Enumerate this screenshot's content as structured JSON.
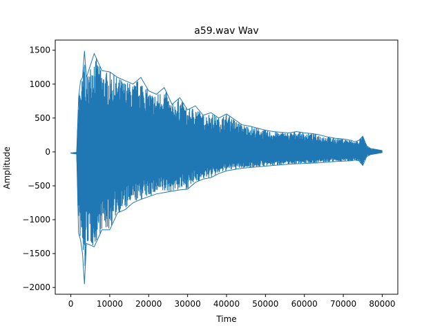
{
  "chart_data": {
    "type": "line",
    "title": "a59.wav Wav",
    "xlabel": "Time",
    "ylabel": "Amplitude",
    "xlim": [
      -4000,
      84000
    ],
    "ylim": [
      -2100,
      1650
    ],
    "xticks": [
      0,
      10000,
      20000,
      30000,
      40000,
      50000,
      60000,
      70000,
      80000
    ],
    "xtick_labels": [
      "0",
      "10000",
      "20000",
      "30000",
      "40000",
      "50000",
      "60000",
      "70000",
      "80000"
    ],
    "yticks": [
      -2000,
      -1500,
      -1000,
      -500,
      0,
      500,
      1000,
      1500
    ],
    "ytick_labels": [
      "−2000",
      "−1500",
      "−1000",
      "−500",
      "0",
      "500",
      "1000",
      "1500"
    ],
    "grid": false,
    "series": [
      {
        "color": "#1f77b4",
        "envelope_x": [
          0,
          1500,
          2000,
          2500,
          3000,
          3500,
          4000,
          6000,
          8000,
          10000,
          12000,
          14000,
          16000,
          18000,
          20000,
          22000,
          24000,
          26000,
          28000,
          30000,
          32000,
          34000,
          36000,
          38000,
          40000,
          42000,
          44000,
          46000,
          48000,
          50000,
          52000,
          54000,
          56000,
          58000,
          60000,
          62000,
          64000,
          66000,
          68000,
          70000,
          72000,
          73000,
          74000,
          75000,
          76000,
          77000,
          78000,
          79000,
          80000
        ],
        "envelope_max": [
          -20,
          -10,
          800,
          1050,
          1100,
          1490,
          1100,
          1450,
          1200,
          1180,
          1100,
          1050,
          1000,
          1100,
          900,
          850,
          950,
          700,
          800,
          620,
          680,
          540,
          580,
          500,
          560,
          480,
          400,
          380,
          350,
          320,
          300,
          290,
          280,
          300,
          280,
          270,
          250,
          220,
          200,
          190,
          170,
          150,
          170,
          230,
          90,
          50,
          40,
          30,
          20
        ],
        "envelope_min": [
          -20,
          -30,
          -1200,
          -1300,
          -1500,
          -1950,
          -1350,
          -1400,
          -1150,
          -1150,
          -900,
          -850,
          -750,
          -700,
          -660,
          -620,
          -600,
          -580,
          -560,
          -550,
          -450,
          -400,
          -380,
          -320,
          -280,
          -260,
          -240,
          -230,
          -220,
          -210,
          -200,
          -190,
          -180,
          -175,
          -170,
          -165,
          -160,
          -150,
          -140,
          -135,
          -130,
          -120,
          -130,
          -200,
          -70,
          -40,
          -30,
          -20,
          -10
        ]
      }
    ]
  }
}
